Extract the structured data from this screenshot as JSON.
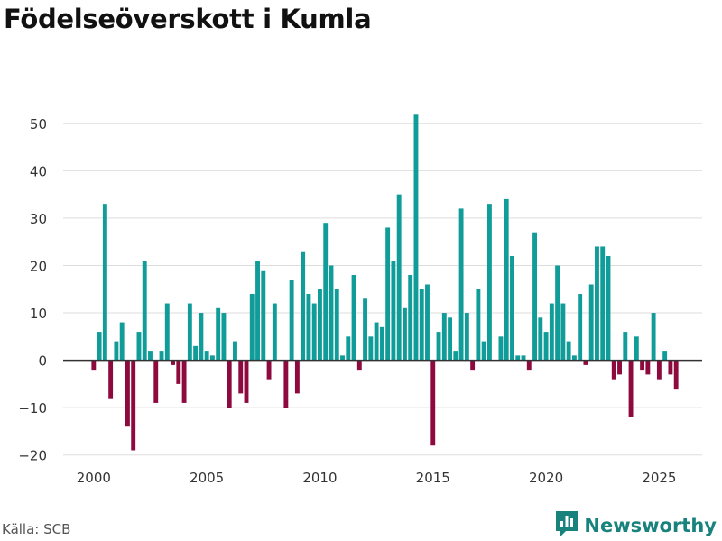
{
  "title": "Födelseöverskott i Kumla",
  "source": "Källa: SCB",
  "brand": "Newsworthy",
  "colors": {
    "positive": "#109c98",
    "negative": "#8e0a3e",
    "grid": "#dddddd",
    "zero": "#333333",
    "tick": "#333333",
    "brand": "#17837c"
  },
  "chart_data": {
    "type": "bar",
    "title": "Födelseöverskott i Kumla",
    "xlabel": "",
    "ylabel": "",
    "xlim": [
      1998.65,
      2026.9
    ],
    "ylim": [
      -21,
      57
    ],
    "yticks": [
      -20,
      -10,
      0,
      10,
      20,
      30,
      40,
      50
    ],
    "xticks": [
      2000,
      2005,
      2010,
      2015,
      2020,
      2025
    ],
    "start": 2000,
    "interval": 0.25,
    "values": [
      -2,
      6,
      33,
      -8,
      4,
      8,
      -14,
      -19,
      6,
      21,
      2,
      -9,
      2,
      12,
      -1,
      -5,
      -9,
      12,
      3,
      10,
      2,
      1,
      11,
      10,
      -10,
      4,
      -7,
      -9,
      14,
      21,
      19,
      -4,
      12,
      0,
      -10,
      17,
      -7,
      23,
      14,
      12,
      15,
      29,
      20,
      15,
      1,
      5,
      18,
      -2,
      13,
      5,
      8,
      7,
      28,
      21,
      35,
      11,
      18,
      52,
      15,
      16,
      -18,
      6,
      10,
      9,
      2,
      32,
      10,
      -2,
      15,
      4,
      33,
      0,
      5,
      34,
      22,
      1,
      1,
      -2,
      27,
      9,
      6,
      12,
      20,
      12,
      4,
      1,
      14,
      -1,
      16,
      24,
      24,
      22,
      -4,
      -3,
      6,
      -12,
      5,
      -2,
      -3,
      10,
      -4,
      2,
      -3,
      -6
    ]
  }
}
